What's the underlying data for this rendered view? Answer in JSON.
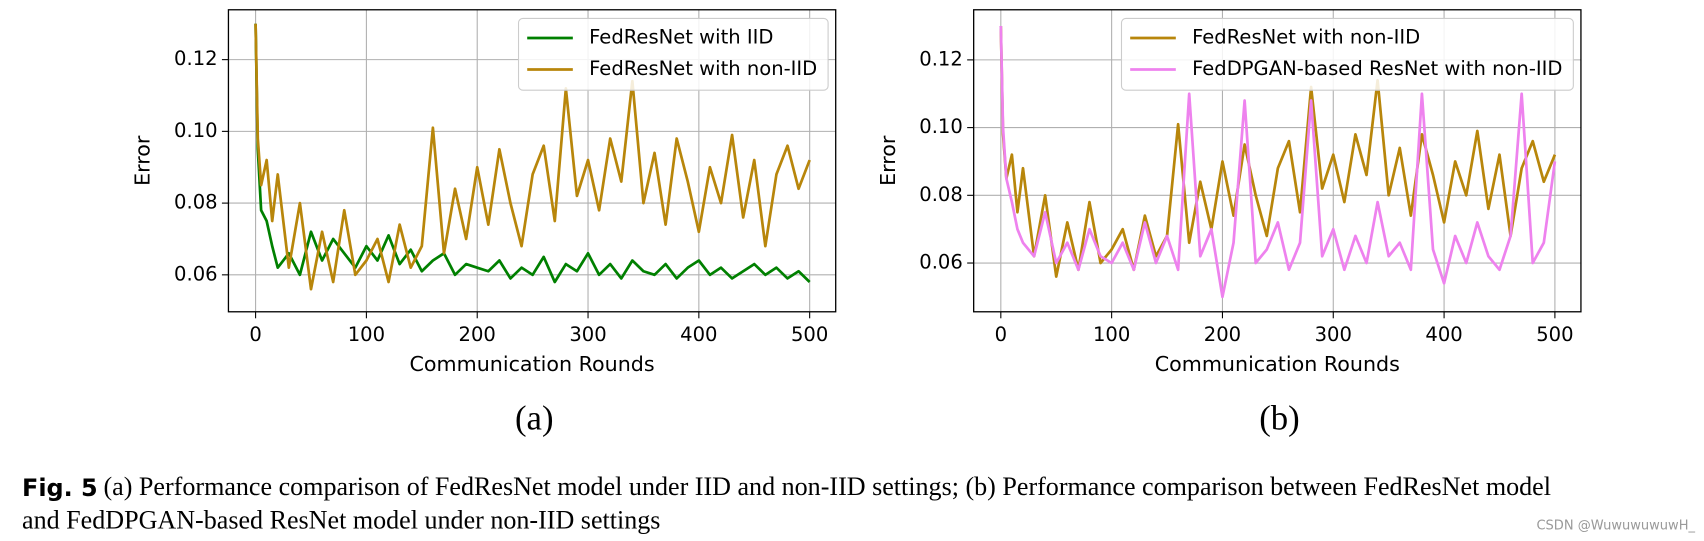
{
  "chart_data": [
    {
      "type": "line",
      "label": "(a)",
      "xlabel": "Communication Rounds",
      "ylabel": "Error",
      "xlim": [
        -24.5,
        523.5
      ],
      "ylim": [
        0.0497,
        0.1339
      ],
      "xticks": [
        0,
        100,
        200,
        300,
        400,
        500
      ],
      "yticks": [
        0.06,
        0.08,
        {
          "value": 0.1,
          "label": "0.10"
        },
        0.12
      ],
      "grid": true,
      "legend": "upper right",
      "x": [
        0,
        2,
        5,
        10,
        15,
        20,
        30,
        40,
        50,
        60,
        70,
        80,
        90,
        100,
        110,
        120,
        130,
        140,
        150,
        160,
        170,
        180,
        190,
        200,
        210,
        220,
        230,
        240,
        250,
        260,
        270,
        280,
        290,
        300,
        310,
        320,
        330,
        340,
        350,
        360,
        370,
        380,
        390,
        400,
        410,
        420,
        430,
        440,
        450,
        460,
        470,
        480,
        490,
        500
      ],
      "series": [
        {
          "name": "FedResNet with IID",
          "color": "#008000",
          "values": [
            0.13,
            0.095,
            0.078,
            0.075,
            0.068,
            0.062,
            0.066,
            0.06,
            0.072,
            0.064,
            0.07,
            0.066,
            0.062,
            0.068,
            0.064,
            0.071,
            0.063,
            0.067,
            0.061,
            0.064,
            0.066,
            0.06,
            0.063,
            0.062,
            0.061,
            0.064,
            0.059,
            0.062,
            0.06,
            0.065,
            0.058,
            0.063,
            0.061,
            0.066,
            0.06,
            0.063,
            0.059,
            0.064,
            0.061,
            0.06,
            0.063,
            0.059,
            0.062,
            0.064,
            0.06,
            0.062,
            0.059,
            0.061,
            0.063,
            0.06,
            0.062,
            0.059,
            0.061,
            0.058
          ]
        },
        {
          "name": "FedResNet with non-IID",
          "color": "#b8860b",
          "values": [
            0.13,
            0.098,
            0.085,
            0.092,
            0.075,
            0.088,
            0.062,
            0.08,
            0.056,
            0.072,
            0.058,
            0.078,
            0.06,
            0.064,
            0.07,
            0.058,
            0.074,
            0.062,
            0.068,
            0.101,
            0.066,
            0.084,
            0.07,
            0.09,
            0.074,
            0.095,
            0.08,
            0.068,
            0.088,
            0.096,
            0.075,
            0.112,
            0.082,
            0.092,
            0.078,
            0.098,
            0.086,
            0.114,
            0.08,
            0.094,
            0.074,
            0.098,
            0.086,
            0.072,
            0.09,
            0.08,
            0.099,
            0.076,
            0.092,
            0.068,
            0.088,
            0.096,
            0.084,
            0.092
          ]
        }
      ]
    },
    {
      "type": "line",
      "label": "(b)",
      "xlabel": "Communication Rounds",
      "ylabel": "Error",
      "xlim": [
        -24.5,
        523.5
      ],
      "ylim": [
        0.0456,
        0.1348
      ],
      "xticks": [
        0,
        100,
        200,
        300,
        400,
        500
      ],
      "yticks": [
        0.06,
        0.08,
        {
          "value": 0.1,
          "label": "0.10"
        },
        0.12
      ],
      "grid": true,
      "legend": "upper right",
      "x": [
        0,
        2,
        5,
        10,
        15,
        20,
        30,
        40,
        50,
        60,
        70,
        80,
        90,
        100,
        110,
        120,
        130,
        140,
        150,
        160,
        170,
        180,
        190,
        200,
        210,
        220,
        230,
        240,
        250,
        260,
        270,
        280,
        290,
        300,
        310,
        320,
        330,
        340,
        350,
        360,
        370,
        380,
        390,
        400,
        410,
        420,
        430,
        440,
        450,
        460,
        470,
        480,
        490,
        500
      ],
      "series": [
        {
          "name": "FedResNet with non-IID",
          "color": "#b8860b",
          "values": [
            0.13,
            0.098,
            0.085,
            0.092,
            0.075,
            0.088,
            0.062,
            0.08,
            0.056,
            0.072,
            0.058,
            0.078,
            0.06,
            0.064,
            0.07,
            0.058,
            0.074,
            0.062,
            0.068,
            0.101,
            0.066,
            0.084,
            0.07,
            0.09,
            0.074,
            0.095,
            0.08,
            0.068,
            0.088,
            0.096,
            0.075,
            0.112,
            0.082,
            0.092,
            0.078,
            0.098,
            0.086,
            0.114,
            0.08,
            0.094,
            0.074,
            0.098,
            0.086,
            0.072,
            0.09,
            0.08,
            0.099,
            0.076,
            0.092,
            0.068,
            0.088,
            0.096,
            0.084,
            0.092
          ]
        },
        {
          "name": "FedDPGAN-based ResNet with non-IID",
          "color": "#ee82ee",
          "values": [
            0.13,
            0.1,
            0.085,
            0.078,
            0.07,
            0.066,
            0.062,
            0.075,
            0.06,
            0.066,
            0.058,
            0.07,
            0.062,
            0.06,
            0.066,
            0.058,
            0.072,
            0.06,
            0.068,
            0.058,
            0.11,
            0.062,
            0.07,
            0.05,
            0.066,
            0.108,
            0.06,
            0.064,
            0.072,
            0.058,
            0.066,
            0.108,
            0.062,
            0.07,
            0.058,
            0.068,
            0.06,
            0.078,
            0.062,
            0.066,
            0.058,
            0.11,
            0.064,
            0.054,
            0.068,
            0.06,
            0.072,
            0.062,
            0.058,
            0.068,
            0.11,
            0.06,
            0.066,
            0.09
          ]
        }
      ]
    }
  ],
  "caption": {
    "label": "Fig. 5",
    "lines": [
      "(a) Performance comparison of FedResNet model under IID and non-IID settings; (b) Performance comparison between FedResNet model",
      "and FedDPGAN-based ResNet model under non-IID settings"
    ]
  },
  "watermark": "CSDN @WuwuwuwuwH_"
}
